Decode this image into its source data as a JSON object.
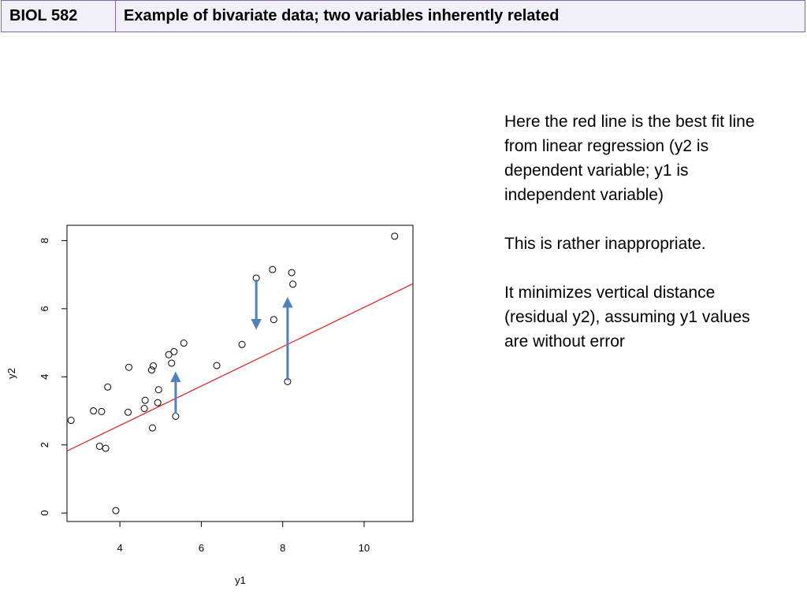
{
  "header": {
    "course": "BIOL 582",
    "title": "Example of bivariate data; two variables inherently related"
  },
  "notes": {
    "p1": "Here the red line is the best fit line from linear regression (y2 is dependent variable; y1 is independent variable)",
    "p2": "This is rather inappropriate.",
    "p3": "It minimizes vertical distance (residual y2), assuming y1 values are without error"
  },
  "colors": {
    "regression_line": "#e41a1c",
    "arrows": "#4f81bd",
    "header_border": "#7e67a8",
    "header_bg": "#f1eff7"
  },
  "chart_data": {
    "type": "scatter",
    "xlabel": "y1",
    "ylabel": "y2",
    "xlim": [
      2.7,
      11.2
    ],
    "ylim": [
      -0.25,
      8.45
    ],
    "xticks": [
      4,
      6,
      8,
      10
    ],
    "yticks": [
      0,
      2,
      4,
      6,
      8
    ],
    "grid": false,
    "points": [
      {
        "x": 2.8,
        "y": 2.72
      },
      {
        "x": 3.35,
        "y": 3.0
      },
      {
        "x": 3.55,
        "y": 2.98
      },
      {
        "x": 3.5,
        "y": 1.96
      },
      {
        "x": 3.65,
        "y": 1.9
      },
      {
        "x": 3.7,
        "y": 3.7
      },
      {
        "x": 3.9,
        "y": 0.07
      },
      {
        "x": 4.2,
        "y": 2.96
      },
      {
        "x": 4.22,
        "y": 4.28
      },
      {
        "x": 4.6,
        "y": 3.07
      },
      {
        "x": 4.62,
        "y": 3.31
      },
      {
        "x": 4.78,
        "y": 4.2
      },
      {
        "x": 4.82,
        "y": 4.32
      },
      {
        "x": 4.8,
        "y": 2.5
      },
      {
        "x": 4.95,
        "y": 3.62
      },
      {
        "x": 4.93,
        "y": 3.24
      },
      {
        "x": 5.2,
        "y": 4.65
      },
      {
        "x": 5.27,
        "y": 4.4
      },
      {
        "x": 5.33,
        "y": 4.74
      },
      {
        "x": 5.37,
        "y": 2.84
      },
      {
        "x": 5.57,
        "y": 4.99
      },
      {
        "x": 6.38,
        "y": 4.33
      },
      {
        "x": 7.0,
        "y": 4.95
      },
      {
        "x": 7.35,
        "y": 6.9
      },
      {
        "x": 7.75,
        "y": 7.15
      },
      {
        "x": 7.78,
        "y": 5.68
      },
      {
        "x": 8.12,
        "y": 3.86
      },
      {
        "x": 8.22,
        "y": 7.06
      },
      {
        "x": 8.25,
        "y": 6.72
      },
      {
        "x": 10.75,
        "y": 8.13
      }
    ],
    "regression_line": {
      "intercept": 0.26,
      "slope": 0.578
    },
    "residual_arrows": [
      {
        "x": 7.35,
        "from": 6.85,
        "to": 5.51
      },
      {
        "x": 8.12,
        "from": 3.9,
        "to": 6.22
      },
      {
        "x": 5.37,
        "from": 2.92,
        "to": 4.03
      }
    ]
  }
}
